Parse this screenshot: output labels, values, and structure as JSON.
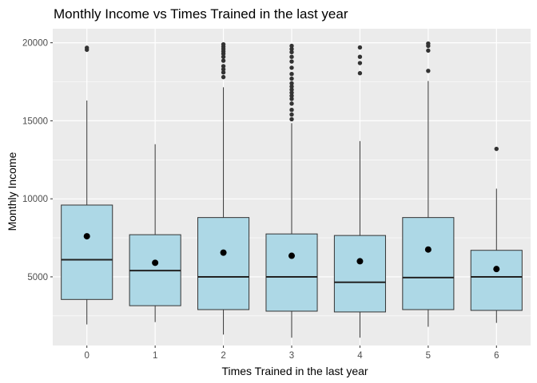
{
  "chart_data": {
    "type": "boxplot",
    "title": "Monthly Income vs Times Trained in the last year",
    "xlabel": "Times Trained in the last year",
    "ylabel": "Monthly Income",
    "categories": [
      "0",
      "1",
      "2",
      "3",
      "4",
      "5",
      "6"
    ],
    "y_ticks": [
      5000,
      10000,
      15000,
      20000
    ],
    "y_tick_labels": [
      "5000",
      "10000",
      "15000",
      "20000"
    ],
    "ylim": [
      600,
      20900
    ],
    "grid": true,
    "legend": "none",
    "colors": {
      "panel": "#ebebeb",
      "grid": "#ffffff",
      "box_fill": "#add8e6",
      "box_stroke": "#333333",
      "point": "#333333",
      "mean": "#000000"
    },
    "boxes": [
      {
        "x": "0",
        "whisker_low": 1950,
        "q1": 3550,
        "median": 6100,
        "q3": 9600,
        "whisker_high": 16300,
        "mean": 7600,
        "outliers": [
          19550,
          19680
        ]
      },
      {
        "x": "1",
        "whisker_low": 2100,
        "q1": 3150,
        "median": 5400,
        "q3": 7700,
        "whisker_high": 13500,
        "mean": 5900,
        "outliers": []
      },
      {
        "x": "2",
        "whisker_low": 1300,
        "q1": 2900,
        "median": 5000,
        "q3": 8800,
        "whisker_high": 17150,
        "mean": 6550,
        "outliers": [
          17800,
          18100,
          18300,
          18500,
          18850,
          19100,
          19300,
          19450,
          19600,
          19750,
          19900
        ]
      },
      {
        "x": "3",
        "whisker_low": 1100,
        "q1": 2800,
        "median": 5000,
        "q3": 7750,
        "whisker_high": 14850,
        "mean": 6350,
        "outliers": [
          15100,
          15400,
          15700,
          16100,
          16400,
          16600,
          16800,
          17000,
          17200,
          17400,
          17700,
          18000,
          18400,
          18800,
          19100,
          19400,
          19600,
          19800
        ]
      },
      {
        "x": "4",
        "whisker_low": 1100,
        "q1": 2750,
        "median": 4650,
        "q3": 7650,
        "whisker_high": 13700,
        "mean": 6000,
        "outliers": [
          18050,
          18700,
          19100,
          19700
        ]
      },
      {
        "x": "5",
        "whisker_low": 1800,
        "q1": 2900,
        "median": 4950,
        "q3": 8800,
        "whisker_high": 17550,
        "mean": 6750,
        "outliers": [
          18200,
          19500,
          19800,
          19950
        ]
      },
      {
        "x": "6",
        "whisker_low": 2050,
        "q1": 2850,
        "median": 5000,
        "q3": 6700,
        "whisker_high": 10650,
        "mean": 5500,
        "outliers": [
          13200
        ]
      }
    ]
  }
}
